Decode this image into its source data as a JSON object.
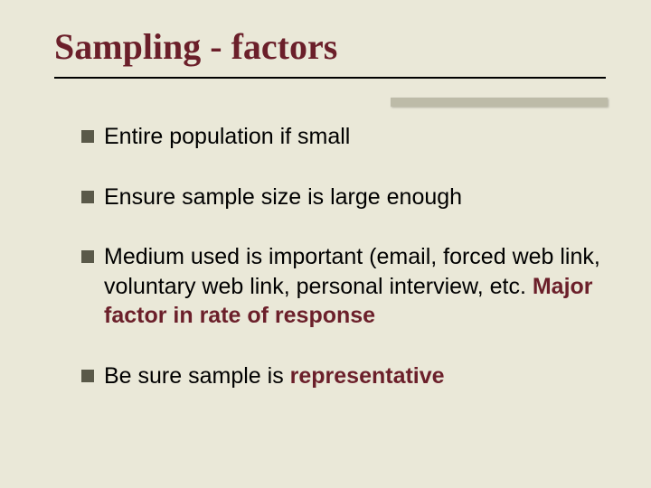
{
  "slide": {
    "title": "Sampling - factors",
    "title_color": "#6b1f2a",
    "title_fontsize": 40,
    "background_color": "#eae8d8",
    "accent_bar_color": "#bdbba8",
    "bullet_marker_color": "#5a5949",
    "body_fontsize": 25,
    "bullets": [
      {
        "text": "Entire population if small"
      },
      {
        "text": "Ensure sample size is large enough"
      },
      {
        "prefix": "Medium used  is important (email, forced web link, voluntary web link, personal interview, etc.  ",
        "emphasis": "Major factor in rate of response"
      },
      {
        "prefix": "Be sure sample is ",
        "emphasis": "representative"
      }
    ]
  }
}
